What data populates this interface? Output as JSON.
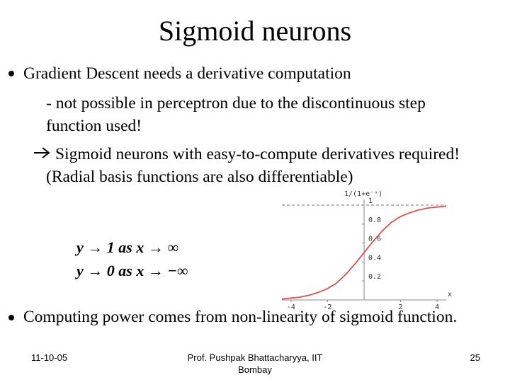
{
  "header": {
    "title": "Sigmoid neurons"
  },
  "body": {
    "bullets": [
      "Gradient Descent needs a derivative computation",
      "Computing power comes from non-linearity of sigmoid function."
    ],
    "sub_point": "- not possible in perceptron due to the discontinuous step function used!",
    "arrow_point": "Sigmoid neurons with easy-to-compute derivatives required! (Radial basis functions are also differentiable)",
    "formulas": [
      "y → 1 as x → ∞",
      "y → 0 as x → −∞"
    ]
  },
  "chart_data": {
    "type": "line",
    "title": "1/(1+e⁻ˣ)",
    "x_label": "x",
    "x": [
      -4.5,
      -4,
      -3.5,
      -3,
      -2.5,
      -2,
      -1.5,
      -1,
      -0.5,
      0,
      0.5,
      1,
      1.5,
      2,
      2.5,
      3,
      3.5,
      4,
      4.5
    ],
    "values": [
      0.01,
      0.02,
      0.03,
      0.05,
      0.08,
      0.12,
      0.18,
      0.27,
      0.38,
      0.5,
      0.62,
      0.73,
      0.82,
      0.88,
      0.92,
      0.95,
      0.97,
      0.98,
      0.99
    ],
    "color": "#d9534f",
    "xlim": [
      -4.5,
      4.5
    ],
    "ylim": [
      0,
      1
    ],
    "xticks": [
      -4,
      -2,
      2,
      4
    ],
    "yticks": [
      0.2,
      0.4,
      0.6,
      0.8,
      1
    ]
  },
  "footer": {
    "date": "11-10-05",
    "author": "Prof. Pushpak Bhattacharyya, IIT Bombay",
    "page": "25"
  }
}
